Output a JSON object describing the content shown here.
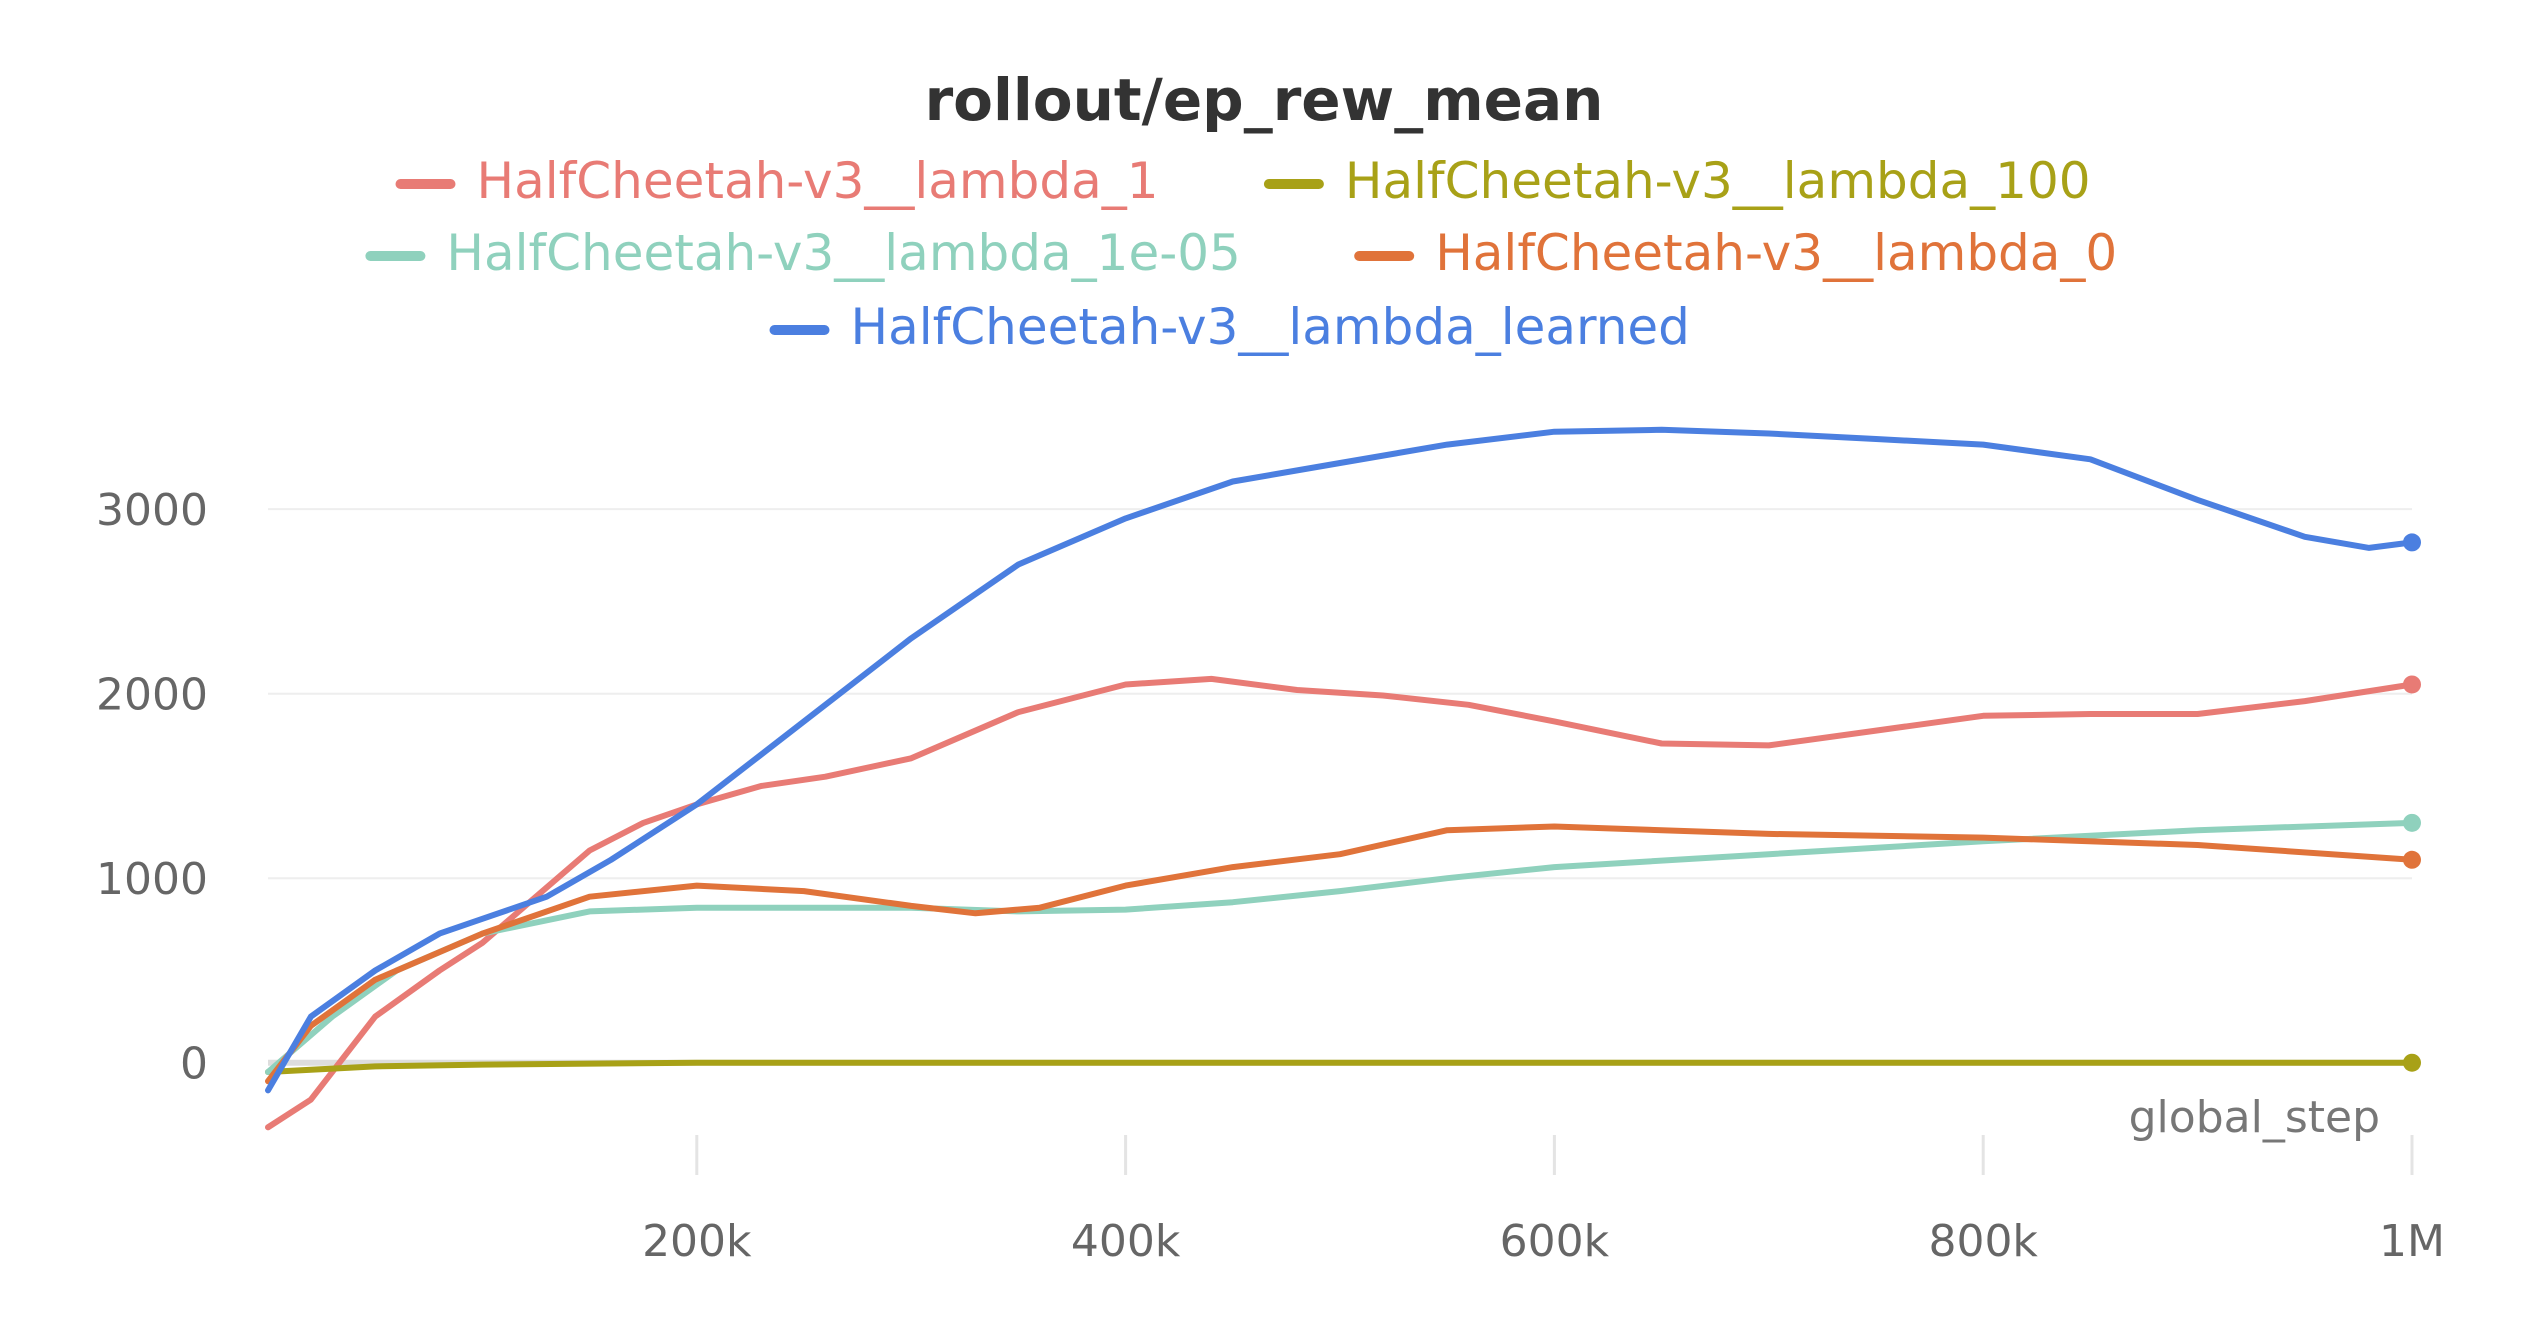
{
  "chart_data": {
    "type": "line",
    "title": "rollout/ep_rew_mean",
    "xlabel": "global_step",
    "ylabel": "",
    "xlim": [
      0,
      1000000
    ],
    "ylim": [
      -500,
      3700
    ],
    "x_ticks": [
      200000,
      400000,
      600000,
      800000,
      1000000
    ],
    "x_tick_labels": [
      "200k",
      "400k",
      "600k",
      "800k",
      "1M"
    ],
    "y_ticks": [
      0,
      1000,
      2000,
      3000
    ],
    "y_tick_labels": [
      "0",
      "1000",
      "2000",
      "3000"
    ],
    "grid": true,
    "legend_position": "top",
    "series": [
      {
        "name": "HalfCheetah-v3__lambda_1",
        "color": "#e87b75",
        "x": [
          0,
          20000,
          50000,
          80000,
          100000,
          120000,
          150000,
          175000,
          200000,
          230000,
          260000,
          300000,
          350000,
          400000,
          440000,
          480000,
          520000,
          560000,
          600000,
          650000,
          700000,
          750000,
          800000,
          850000,
          900000,
          950000,
          1000000
        ],
        "y": [
          -350,
          -200,
          250,
          500,
          650,
          850,
          1150,
          1300,
          1400,
          1500,
          1550,
          1650,
          1900,
          2050,
          2080,
          2020,
          1990,
          1940,
          1850,
          1730,
          1720,
          1800,
          1880,
          1890,
          1890,
          1960,
          2050
        ]
      },
      {
        "name": "HalfCheetah-v3__lambda_100",
        "color": "#a8a117",
        "x": [
          0,
          50000,
          100000,
          200000,
          400000,
          600000,
          800000,
          1000000
        ],
        "y": [
          -50,
          -20,
          -10,
          0,
          0,
          0,
          0,
          0
        ]
      },
      {
        "name": "HalfCheetah-v3__lambda_1e-05",
        "color": "#8fd1bd",
        "x": [
          0,
          30000,
          60000,
          100000,
          150000,
          200000,
          250000,
          300000,
          350000,
          400000,
          450000,
          500000,
          550000,
          600000,
          700000,
          800000,
          900000,
          1000000
        ],
        "y": [
          -50,
          250,
          500,
          700,
          820,
          840,
          840,
          840,
          820,
          830,
          870,
          930,
          1000,
          1060,
          1130,
          1200,
          1260,
          1300
        ]
      },
      {
        "name": "HalfCheetah-v3__lambda_0",
        "color": "#e0733a",
        "x": [
          0,
          20000,
          50000,
          100000,
          150000,
          200000,
          250000,
          300000,
          330000,
          360000,
          400000,
          450000,
          500000,
          550000,
          600000,
          700000,
          800000,
          900000,
          1000000
        ],
        "y": [
          -100,
          200,
          450,
          700,
          900,
          960,
          930,
          850,
          810,
          840,
          960,
          1060,
          1130,
          1260,
          1280,
          1240,
          1220,
          1180,
          1100
        ]
      },
      {
        "name": "HalfCheetah-v3__lambda_learned",
        "color": "#4b7fe0",
        "x": [
          0,
          20000,
          50000,
          80000,
          100000,
          130000,
          160000,
          200000,
          250000,
          300000,
          350000,
          400000,
          450000,
          500000,
          550000,
          600000,
          650000,
          700000,
          750000,
          800000,
          850000,
          900000,
          950000,
          980000,
          1000000
        ],
        "y": [
          -150,
          250,
          500,
          700,
          780,
          900,
          1100,
          1400,
          1850,
          2300,
          2700,
          2950,
          3150,
          3250,
          3350,
          3420,
          3430,
          3410,
          3380,
          3350,
          3270,
          3050,
          2850,
          2790,
          2820
        ]
      }
    ]
  }
}
